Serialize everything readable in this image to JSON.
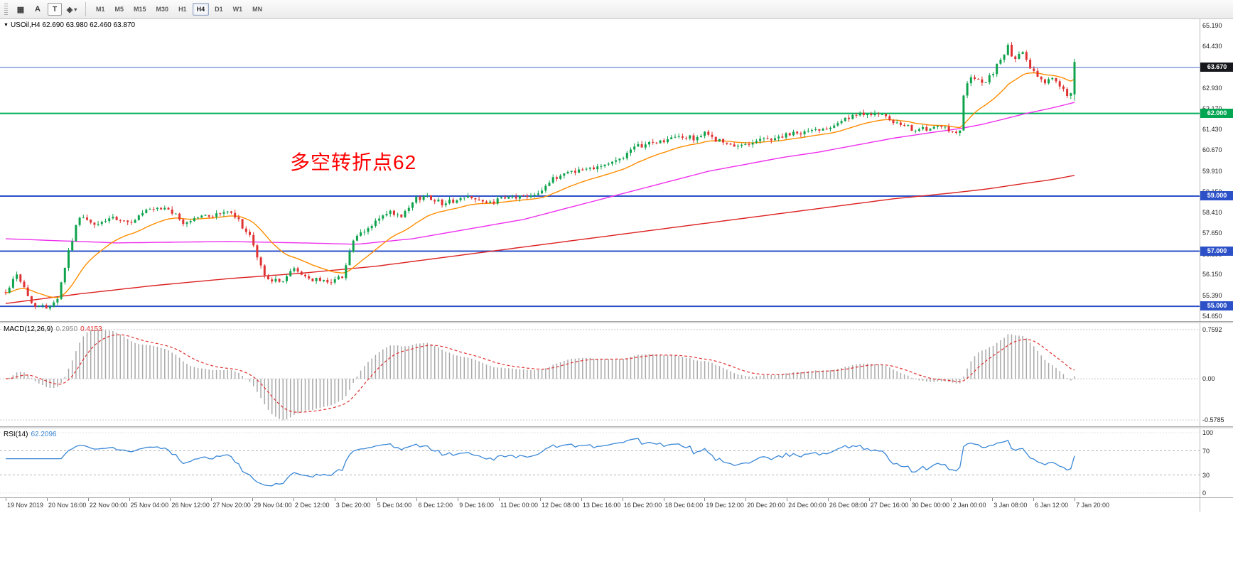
{
  "toolbar": {
    "tools": [
      {
        "name": "chart-objects-tool",
        "glyph": "▦",
        "boxed": false
      },
      {
        "name": "text-annotation-tool",
        "glyph": "A",
        "boxed": false
      },
      {
        "name": "text-label-tool",
        "glyph": "T",
        "boxed": true
      },
      {
        "name": "shapes-tool",
        "glyph": "◈",
        "caret": "▾",
        "boxed": false
      }
    ],
    "timeframes": [
      {
        "label": "M1"
      },
      {
        "label": "M5"
      },
      {
        "label": "M15"
      },
      {
        "label": "M30"
      },
      {
        "label": "H1"
      },
      {
        "label": "H4",
        "active": true
      },
      {
        "label": "D1"
      },
      {
        "label": "W1"
      },
      {
        "label": "MN"
      }
    ]
  },
  "chart_data": {
    "type": "candlestick",
    "symbol": "USOil",
    "timeframe": "H4",
    "marker_glyph": "▼",
    "header": "USOil,H4  62.690 63.980 62.460 63.870",
    "ohlc": {
      "open": 62.69,
      "high": 63.98,
      "low": 62.46,
      "close": 63.87
    },
    "annotation": {
      "text": "多空转折点62",
      "color": "#ff0000"
    },
    "price_axis": {
      "range": {
        "max": 65.42,
        "min": 54.46
      },
      "labels": [
        "65.190",
        "64.430",
        "63.690",
        "62.930",
        "62.170",
        "61.430",
        "60.670",
        "59.910",
        "59.150",
        "58.410",
        "57.650",
        "56.890",
        "56.150",
        "55.390",
        "54.650"
      ]
    },
    "levels": [
      {
        "value": 63.67,
        "label": "63.670",
        "line_color": "#4668c8",
        "line_width": 1,
        "badge_color": "#16181d"
      },
      {
        "value": 62.0,
        "label": "62.000",
        "line_color": "#00b05a",
        "line_width": 2,
        "badge_color": "#00a651"
      },
      {
        "value": 59.0,
        "label": "59.000",
        "line_color": "#2b50c8",
        "line_width": 2,
        "badge_color": "#2b50c8"
      },
      {
        "value": 57.0,
        "label": "57.000",
        "line_color": "#2b50c8",
        "line_width": 2,
        "badge_color": "#2b50c8"
      },
      {
        "value": 55.0,
        "label": "55.000",
        "line_color": "#2b50c8",
        "line_width": 2,
        "badge_color": "#2b50c8"
      }
    ],
    "moving_averages": {
      "fast": {
        "color": "#ff8c00",
        "period": 20
      },
      "mid": {
        "color": "#ee30ee",
        "anchors": [
          [
            0,
            57.45
          ],
          [
            30,
            57.3
          ],
          [
            60,
            57.35
          ],
          [
            80,
            57.3
          ],
          [
            95,
            57.25
          ],
          [
            110,
            57.45
          ],
          [
            125,
            57.8
          ],
          [
            140,
            58.15
          ],
          [
            150,
            58.5
          ],
          [
            160,
            58.85
          ],
          [
            170,
            59.2
          ],
          [
            180,
            59.55
          ],
          [
            190,
            59.9
          ],
          [
            200,
            60.15
          ],
          [
            210,
            60.4
          ],
          [
            220,
            60.6
          ],
          [
            230,
            60.85
          ],
          [
            240,
            61.1
          ],
          [
            250,
            61.3
          ],
          [
            258,
            61.45
          ],
          [
            264,
            61.6
          ],
          [
            270,
            61.8
          ],
          [
            276,
            62.0
          ],
          [
            283,
            62.2
          ],
          [
            289,
            62.4
          ]
        ]
      },
      "slow": {
        "color": "#dd2222",
        "anchors": [
          [
            0,
            55.1
          ],
          [
            20,
            55.45
          ],
          [
            40,
            55.75
          ],
          [
            60,
            56.0
          ],
          [
            80,
            56.2
          ],
          [
            100,
            56.45
          ],
          [
            120,
            56.8
          ],
          [
            140,
            57.15
          ],
          [
            160,
            57.5
          ],
          [
            180,
            57.85
          ],
          [
            200,
            58.2
          ],
          [
            220,
            58.55
          ],
          [
            240,
            58.9
          ],
          [
            255,
            59.1
          ],
          [
            265,
            59.25
          ],
          [
            275,
            59.45
          ],
          [
            283,
            59.6
          ],
          [
            289,
            59.75
          ]
        ]
      }
    },
    "candles": {
      "count": 290,
      "seed": 42,
      "noise": 0.09,
      "wick": 0.12,
      "up_color": "#0fa34d",
      "down_color": "#e03232",
      "last": {
        "o": 62.69,
        "h": 63.98,
        "l": 62.46,
        "c": 63.87
      },
      "close_anchors": [
        [
          0,
          55.5
        ],
        [
          3,
          56.2
        ],
        [
          7,
          55.1
        ],
        [
          11,
          54.95
        ],
        [
          14,
          55.3
        ],
        [
          17,
          57.0
        ],
        [
          20,
          58.3
        ],
        [
          24,
          57.9
        ],
        [
          28,
          58.2
        ],
        [
          33,
          58.0
        ],
        [
          38,
          58.45
        ],
        [
          44,
          58.55
        ],
        [
          48,
          58.0
        ],
        [
          52,
          58.25
        ],
        [
          56,
          58.3
        ],
        [
          60,
          58.45
        ],
        [
          63,
          58.1
        ],
        [
          66,
          57.5
        ],
        [
          70,
          56.1
        ],
        [
          74,
          55.85
        ],
        [
          78,
          56.35
        ],
        [
          82,
          56.0
        ],
        [
          86,
          55.9
        ],
        [
          89,
          55.95
        ],
        [
          91,
          56.1
        ],
        [
          94,
          57.4
        ],
        [
          98,
          57.8
        ],
        [
          100,
          58.1
        ],
        [
          104,
          58.4
        ],
        [
          107,
          58.2
        ],
        [
          111,
          58.9
        ],
        [
          114,
          59.0
        ],
        [
          118,
          58.75
        ],
        [
          122,
          58.85
        ],
        [
          126,
          59.0
        ],
        [
          130,
          58.7
        ],
        [
          133,
          58.85
        ],
        [
          137,
          58.95
        ],
        [
          141,
          59.0
        ],
        [
          144,
          59.15
        ],
        [
          148,
          59.6
        ],
        [
          152,
          59.9
        ],
        [
          156,
          59.95
        ],
        [
          160,
          60.1
        ],
        [
          164,
          60.2
        ],
        [
          167,
          60.45
        ],
        [
          171,
          60.8
        ],
        [
          175,
          60.95
        ],
        [
          178,
          61.0
        ],
        [
          182,
          61.15
        ],
        [
          186,
          61.1
        ],
        [
          189,
          61.25
        ],
        [
          193,
          61.0
        ],
        [
          197,
          60.75
        ],
        [
          200,
          60.9
        ],
        [
          204,
          61.05
        ],
        [
          208,
          61.1
        ],
        [
          211,
          61.2
        ],
        [
          215,
          61.3
        ],
        [
          219,
          61.4
        ],
        [
          222,
          61.5
        ],
        [
          226,
          61.75
        ],
        [
          230,
          61.9
        ],
        [
          233,
          62.05
        ],
        [
          237,
          61.9
        ],
        [
          241,
          61.6
        ],
        [
          245,
          61.45
        ],
        [
          249,
          61.4
        ],
        [
          253,
          61.5
        ],
        [
          256,
          61.35
        ],
        [
          258,
          61.4
        ],
        [
          259,
          62.6
        ],
        [
          260,
          63.15
        ],
        [
          262,
          63.3
        ],
        [
          264,
          63.05
        ],
        [
          266,
          63.3
        ],
        [
          267,
          63.5
        ],
        [
          269,
          64.0
        ],
        [
          271,
          64.4
        ],
        [
          273,
          63.9
        ],
        [
          275,
          64.25
        ],
        [
          277,
          63.6
        ],
        [
          279,
          63.35
        ],
        [
          281,
          63.15
        ],
        [
          283,
          63.3
        ],
        [
          285,
          62.95
        ],
        [
          287,
          62.7
        ],
        [
          288,
          62.75
        ],
        [
          289,
          63.8
        ]
      ]
    },
    "macd": {
      "header": "MACD(12,26,9)",
      "value_main": "0.2950",
      "value_signal": "0.4153",
      "fast": 12,
      "slow": 26,
      "signal": 9,
      "bar_color": "#a8a8a8",
      "signal_color": "#e03131",
      "axis_labels": {
        "top": "0.7592",
        "zero": "0.00",
        "bottom": "-0.5785"
      }
    },
    "rsi": {
      "header": "RSI(14)",
      "value": "62.2096",
      "period": 14,
      "color": "#3a87d6",
      "dashed_levels": [
        70,
        30
      ],
      "edge_levels": [
        100,
        0
      ],
      "axis_labels": [
        {
          "value": 100,
          "text": "100"
        },
        {
          "value": 70,
          "text": "70"
        },
        {
          "value": 30,
          "text": "30"
        },
        {
          "value": 0,
          "text": "0"
        }
      ]
    },
    "x_axis": {
      "labels": [
        "19 Nov 2019",
        "20 Nov 16:00",
        "22 Nov 00:00",
        "25 Nov 04:00",
        "26 Nov 12:00",
        "27 Nov 20:00",
        "29 Nov 04:00",
        "2 Dec 12:00",
        "3 Dec 20:00",
        "5 Dec 04:00",
        "6 Dec 12:00",
        "9 Dec 16:00",
        "11 Dec 00:00",
        "12 Dec 08:00",
        "13 Dec 16:00",
        "16 Dec 20:00",
        "18 Dec 04:00",
        "19 Dec 12:00",
        "20 Dec 20:00",
        "24 Dec 00:00",
        "26 Dec 08:00",
        "27 Dec 16:00",
        "30 Dec 00:00",
        "2 Jan 00:00",
        "3 Jan 08:00",
        "6 Jan 12:00",
        "7 Jan 20:00"
      ]
    }
  }
}
